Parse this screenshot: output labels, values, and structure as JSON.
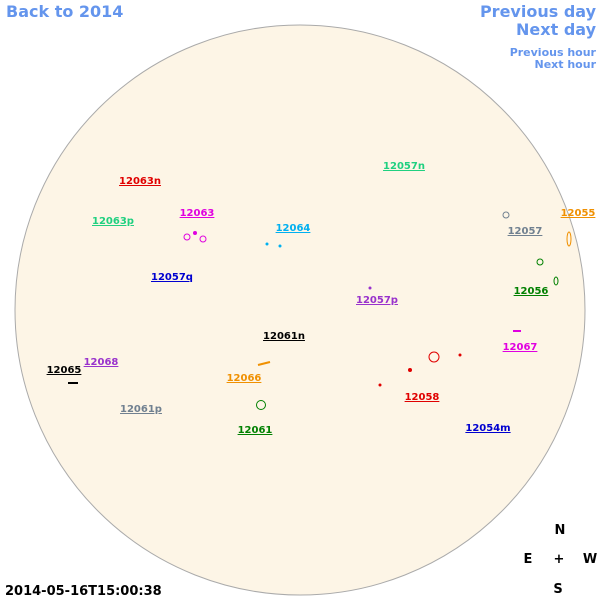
{
  "header": {
    "back_link": "Back to 2014",
    "previous_day": "Previous day",
    "next_day": "Next day",
    "previous_hour": "Previous hour",
    "next_hour": "Next hour"
  },
  "timestamp": "2014-05-16T15:00:38",
  "compass": {
    "north": "N",
    "east": "E",
    "center": "+",
    "west": "W",
    "south": "S"
  },
  "regions": [
    {
      "label": "12063n",
      "color": "#e00000"
    },
    {
      "label": "12063p",
      "color": "#20d080"
    },
    {
      "label": "12063",
      "color": "#e000e0"
    },
    {
      "label": "12064",
      "color": "#00b0f0"
    },
    {
      "label": "12057q",
      "color": "#0000d0"
    },
    {
      "label": "12057n",
      "color": "#20d080"
    },
    {
      "label": "12055",
      "color": "#f09000"
    },
    {
      "label": "12057",
      "color": "#708090"
    },
    {
      "label": "12056",
      "color": "#008000"
    },
    {
      "label": "12057p",
      "color": "#9932cc"
    },
    {
      "label": "12061n",
      "color": "#000000"
    },
    {
      "label": "12067",
      "color": "#e000e0"
    },
    {
      "label": "12068",
      "color": "#9932cc"
    },
    {
      "label": "12065",
      "color": "#000000"
    },
    {
      "label": "12066",
      "color": "#f09000"
    },
    {
      "label": "12058",
      "color": "#e00000"
    },
    {
      "label": "12061p",
      "color": "#708090"
    },
    {
      "label": "12061",
      "color": "#008000"
    },
    {
      "label": "12054m",
      "color": "#0000d0"
    }
  ]
}
